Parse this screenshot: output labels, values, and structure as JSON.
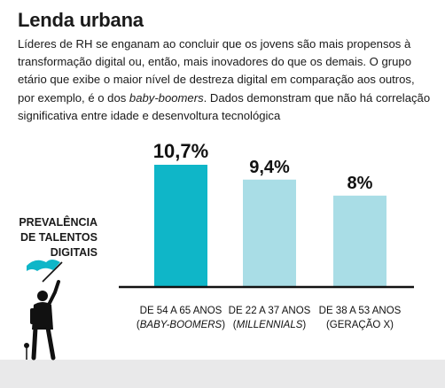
{
  "title": "Lenda urbana",
  "body": {
    "part1": "Líderes de RH se enganam ao concluir que os jovens são mais propensos à transformação digital ou, então, mais inovadores do que os demais. O grupo etário que exibe o maior nível de destreza digital em comparação aos outros, por exemplo, é o dos ",
    "emphasis": "baby-boomers",
    "part2": ". Dados demonstram que não há correlação significativa entre idade e desenvoltura tecnológica"
  },
  "y_label_lines": [
    "PREVALÊNCIA",
    "DE TALENTOS",
    "DIGITAIS"
  ],
  "colors": {
    "highlight": "#0fb6c8",
    "normal": "#a9dde6",
    "axis": "#111111",
    "ground": "#e9e9ea"
  },
  "icons": [
    "person-with-flag-icon"
  ],
  "chart_data": {
    "type": "bar",
    "categories": [
      "DE 54 A 65 ANOS",
      "DE 22 A 37 ANOS",
      "DE 38 A 53 ANOS"
    ],
    "category_sublabels": [
      "(BABY-BOOMERS)",
      "(MILLENNIALS)",
      "(GERAÇÃO X)"
    ],
    "values": [
      10.7,
      9.4,
      8
    ],
    "value_labels": [
      "10,7%",
      "9,4%",
      "8%"
    ],
    "highlight_index": 0,
    "ylabel": "PREVALÊNCIA DE TALENTOS DIGITAIS",
    "ylim": [
      0,
      10.7
    ],
    "grid": false
  }
}
